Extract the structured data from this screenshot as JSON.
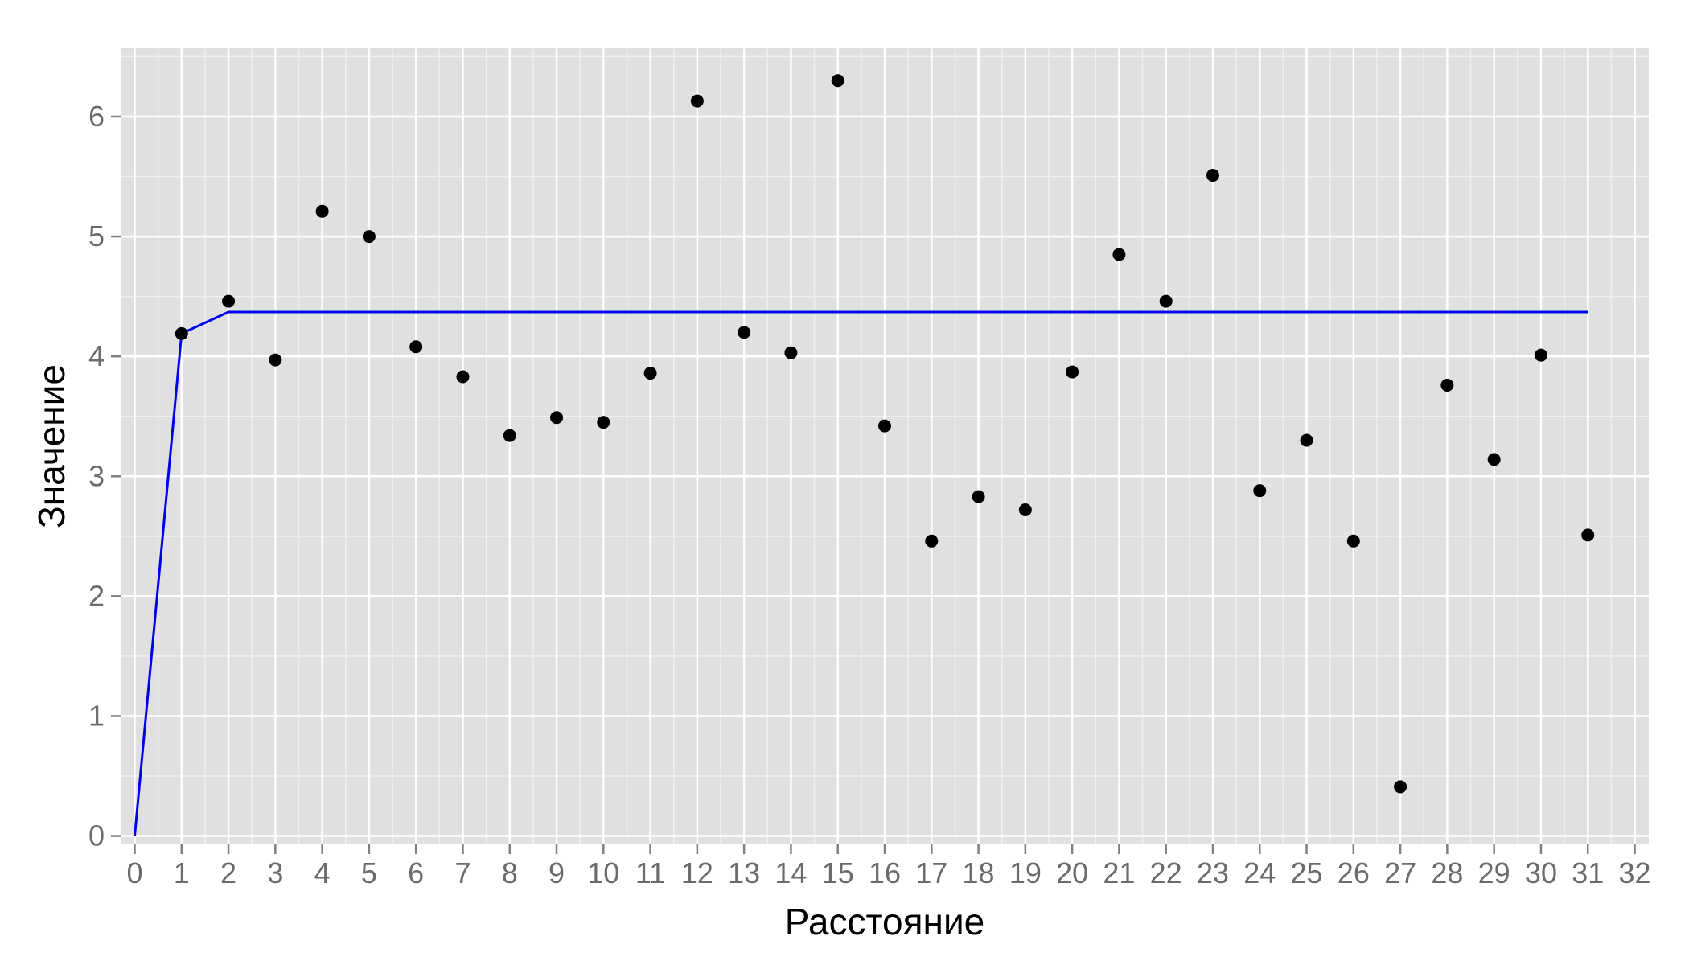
{
  "chart_data": {
    "type": "scatter",
    "title": "",
    "xlabel": "Расстояние",
    "ylabel": "Значение",
    "xlim": [
      -0.3,
      32.3
    ],
    "ylim": [
      -0.07,
      6.57
    ],
    "x_ticks": [
      0,
      1,
      2,
      3,
      4,
      5,
      6,
      7,
      8,
      9,
      10,
      11,
      12,
      13,
      14,
      15,
      16,
      17,
      18,
      19,
      20,
      21,
      22,
      23,
      24,
      25,
      26,
      27,
      28,
      29,
      30,
      31,
      32
    ],
    "y_ticks": [
      0,
      1,
      2,
      3,
      4,
      5,
      6
    ],
    "grid": true,
    "legend": "none",
    "colors": {
      "panel_background": "#e0e0e0",
      "grid_major": "#ffffff",
      "points": "#000000",
      "line": "#0000ee",
      "tick_label": "#6b6b6b"
    },
    "series": [
      {
        "kind": "points",
        "x": [
          1,
          2,
          3,
          4,
          5,
          6,
          7,
          8,
          9,
          10,
          11,
          12,
          13,
          14,
          15,
          16,
          17,
          18,
          19,
          20,
          21,
          22,
          23,
          24,
          25,
          26,
          27,
          28,
          29,
          30,
          31
        ],
        "y": [
          4.19,
          4.46,
          3.97,
          5.21,
          5.0,
          4.08,
          3.83,
          3.34,
          3.49,
          3.45,
          3.86,
          6.13,
          4.2,
          4.03,
          6.3,
          3.42,
          2.46,
          2.83,
          2.72,
          3.87,
          4.85,
          4.46,
          5.51,
          2.88,
          3.3,
          2.46,
          0.41,
          3.76,
          3.14,
          4.01,
          2.51
        ]
      },
      {
        "kind": "line",
        "x": [
          0,
          1,
          2,
          31
        ],
        "y": [
          0,
          4.19,
          4.37,
          4.37
        ]
      }
    ]
  }
}
